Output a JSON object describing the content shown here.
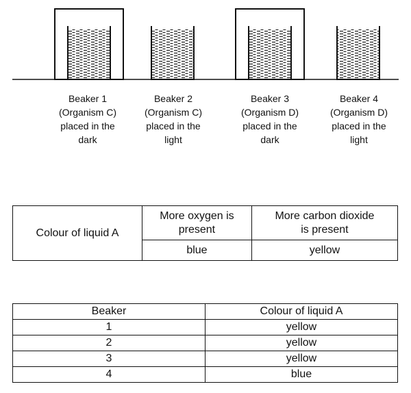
{
  "beakers": [
    {
      "id": 1,
      "covered": true,
      "caption": [
        "Beaker 1",
        "(Organism C)",
        "placed in the",
        "dark"
      ]
    },
    {
      "id": 2,
      "covered": false,
      "caption": [
        "Beaker 2",
        "(Organism C)",
        "placed in the",
        "light"
      ]
    },
    {
      "id": 3,
      "covered": true,
      "caption": [
        "Beaker 3",
        "(Organism D)",
        "placed in the",
        "dark"
      ]
    },
    {
      "id": 4,
      "covered": false,
      "caption": [
        "Beaker 4",
        "(Organism D)",
        "placed in the",
        "light"
      ]
    }
  ],
  "key_table": {
    "row_label": "Colour of liquid A",
    "columns": [
      {
        "header": [
          "More oxygen is",
          "present"
        ],
        "value": "blue"
      },
      {
        "header": [
          "More carbon dioxide",
          "is present"
        ],
        "value": "yellow"
      }
    ]
  },
  "results_table": {
    "headers": [
      "Beaker",
      "Colour of liquid A"
    ],
    "rows": [
      [
        "1",
        "yellow"
      ],
      [
        "2",
        "yellow"
      ],
      [
        "3",
        "yellow"
      ],
      [
        "4",
        "blue"
      ]
    ]
  }
}
